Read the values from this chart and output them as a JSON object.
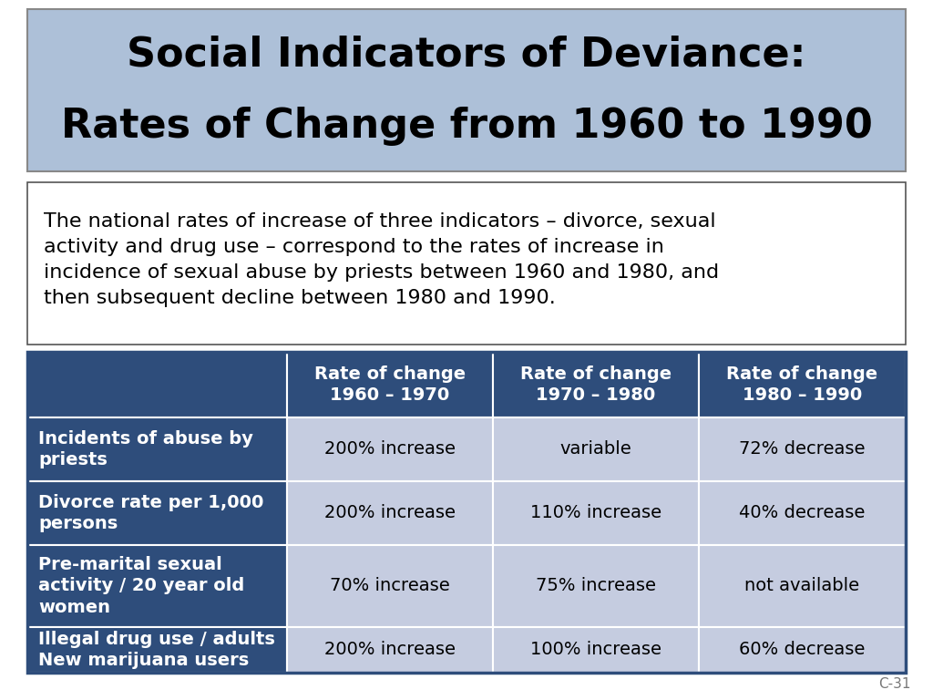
{
  "title_line1": "Social Indicators of Deviance:",
  "title_line2": "Rates of Change from 1960 to 1990",
  "subtitle_lines": [
    "The national rates of increase of three indicators – divorce, sexual",
    "activity and drug use – correspond to the rates of increase in",
    "incidence of sexual abuse by priests between 1960 and 1980, and",
    "then subsequent decline between 1980 and 1990."
  ],
  "col_headers": [
    "",
    "Rate of change\n1960 – 1970",
    "Rate of change\n1970 – 1980",
    "Rate of change\n1980 – 1990"
  ],
  "rows": [
    [
      "Incidents of abuse by\npriests",
      "200% increase",
      "variable",
      "72% decrease"
    ],
    [
      "Divorce rate per 1,000\npersons",
      "200% increase",
      "110% increase",
      "40% decrease"
    ],
    [
      "Pre-marital sexual\nactivity / 20 year old\nwomen",
      "70% increase",
      "75% increase",
      "not available"
    ],
    [
      "Illegal drug use / adults\nNew marijuana users",
      "200% increase",
      "100% increase",
      "60% decrease"
    ]
  ],
  "header_bg": "#2E4D7B",
  "header_text_color": "#FFFFFF",
  "row_label_bg": "#2E4D7B",
  "row_label_text_color": "#FFFFFF",
  "data_cell_bg": "#C5CCE0",
  "data_cell_text_color": "#000000",
  "title_bg": "#ADC0D8",
  "title_border_color": "#888888",
  "slide_bg": "#FFFFFF",
  "subtitle_border_color": "#555555",
  "table_border_color": "#2E4D7B",
  "slide_id": "C-31",
  "title_fontsize": 32,
  "subtitle_fontsize": 16,
  "header_fontsize": 14,
  "cell_fontsize": 14,
  "label_fontsize": 14
}
